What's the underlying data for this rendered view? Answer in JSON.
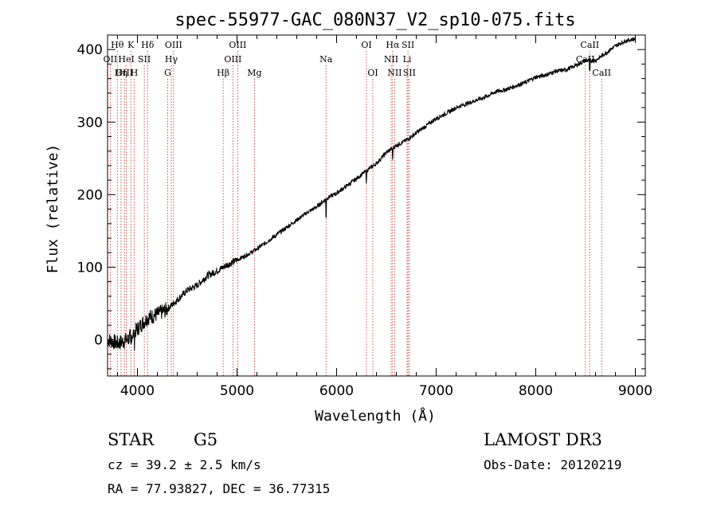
{
  "chart_data": {
    "type": "line",
    "title": "spec-55977-GAC_080N37_V2_sp10-075.fits",
    "xlabel": "Wavelength (Å)",
    "ylabel": "Flux (relative)",
    "xlim": [
      3700,
      9100
    ],
    "ylim": [
      -50,
      420
    ],
    "x_ticks": [
      4000,
      5000,
      6000,
      7000,
      8000,
      9000
    ],
    "y_ticks": [
      0,
      100,
      200,
      300,
      400
    ],
    "series": [
      {
        "name": "spectrum",
        "x": [
          3700,
          3800,
          3900,
          4000,
          4100,
          4200,
          4300,
          4400,
          4500,
          4600,
          4700,
          4800,
          4900,
          5000,
          5100,
          5200,
          5300,
          5400,
          5500,
          5600,
          5700,
          5800,
          5900,
          6000,
          6100,
          6200,
          6300,
          6400,
          6500,
          6600,
          6700,
          6800,
          6900,
          7000,
          7100,
          7200,
          7300,
          7400,
          7500,
          7600,
          7700,
          7800,
          7900,
          8000,
          8100,
          8200,
          8300,
          8400,
          8500,
          8600,
          8700,
          8800,
          8900,
          9000
        ],
        "y": [
          0,
          -5,
          0,
          15,
          30,
          35,
          42,
          55,
          68,
          75,
          88,
          95,
          103,
          110,
          117,
          125,
          135,
          145,
          155,
          165,
          175,
          183,
          195,
          202,
          212,
          222,
          233,
          243,
          258,
          268,
          275,
          285,
          295,
          305,
          312,
          320,
          325,
          330,
          335,
          342,
          345,
          350,
          355,
          362,
          365,
          370,
          372,
          378,
          385,
          385,
          395,
          405,
          412,
          415
        ]
      }
    ],
    "spectral_lines": [
      {
        "label": "Hθ",
        "wavelength": 3798,
        "row": 0
      },
      {
        "label": "OII",
        "wavelength": 3727,
        "row": 1
      },
      {
        "label": "OIII",
        "wavelength": 3869,
        "row": 2
      },
      {
        "label": "Hη",
        "wavelength": 3835,
        "row": 2
      },
      {
        "label": "K",
        "wavelength": 3934,
        "row": 0
      },
      {
        "label": "HeI",
        "wavelength": 3889,
        "row": 1
      },
      {
        "label": "H",
        "wavelength": 3968,
        "row": 2
      },
      {
        "label": "SII",
        "wavelength": 4069,
        "row": 1
      },
      {
        "label": "Hδ",
        "wavelength": 4102,
        "row": 0
      },
      {
        "label": "OIII",
        "wavelength": 4363,
        "row": 0
      },
      {
        "label": "Hγ",
        "wavelength": 4340,
        "row": 1
      },
      {
        "label": "G",
        "wavelength": 4304,
        "row": 2
      },
      {
        "label": "Hβ",
        "wavelength": 4861,
        "row": 2
      },
      {
        "label": "OIII",
        "wavelength": 5007,
        "row": 0
      },
      {
        "label": "OIII",
        "wavelength": 4959,
        "row": 1
      },
      {
        "label": "Mg",
        "wavelength": 5175,
        "row": 2
      },
      {
        "label": "Na",
        "wavelength": 5894,
        "row": 1
      },
      {
        "label": "OI",
        "wavelength": 6300,
        "row": 0
      },
      {
        "label": "OI",
        "wavelength": 6364,
        "row": 2
      },
      {
        "label": "Hα",
        "wavelength": 6563,
        "row": 0
      },
      {
        "label": "NII",
        "wavelength": 6548,
        "row": 1
      },
      {
        "label": "NII",
        "wavelength": 6583,
        "row": 2
      },
      {
        "label": "SII",
        "wavelength": 6717,
        "row": 0
      },
      {
        "label": "Li",
        "wavelength": 6708,
        "row": 1
      },
      {
        "label": "SII",
        "wavelength": 6731,
        "row": 2
      },
      {
        "label": "CaII",
        "wavelength": 8542,
        "row": 0
      },
      {
        "label": "CaII",
        "wavelength": 8498,
        "row": 1
      },
      {
        "label": "CaII",
        "wavelength": 8662,
        "row": 2
      }
    ],
    "colors": {
      "spectrum": "#000000",
      "lines": "#cc2222",
      "axes": "#000000"
    }
  },
  "info": {
    "object_class": "STAR",
    "subclass": "G5",
    "survey": "LAMOST DR3",
    "redshift": "cz = 39.2 ± 2.5 km/s",
    "obs_date": "Obs-Date: 20120219",
    "coords": "RA =  77.93827, DEC =  36.77315"
  }
}
